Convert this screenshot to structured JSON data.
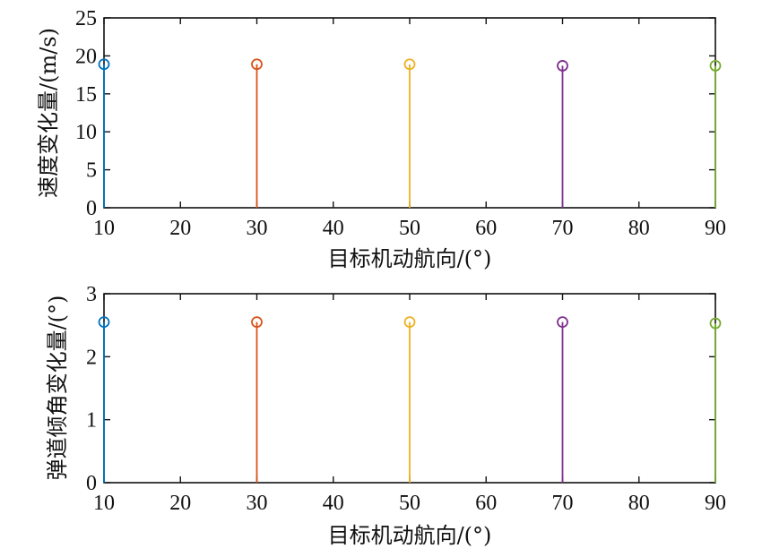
{
  "chart_data": [
    {
      "type": "stem",
      "xlabel": "目标机动航向/(°)",
      "ylabel": "速度变化量/(m/s)",
      "xlim": [
        10,
        90
      ],
      "ylim": [
        0,
        25
      ],
      "xticks": [
        10,
        20,
        30,
        40,
        50,
        60,
        70,
        80,
        90
      ],
      "yticks": [
        0,
        5,
        10,
        15,
        20,
        25
      ],
      "grid": false,
      "series": [
        {
          "x": [
            10
          ],
          "values": [
            18.9
          ],
          "color": "#0072BD"
        },
        {
          "x": [
            30
          ],
          "values": [
            18.9
          ],
          "color": "#D95319"
        },
        {
          "x": [
            50
          ],
          "values": [
            18.9
          ],
          "color": "#EDB120"
        },
        {
          "x": [
            70
          ],
          "values": [
            18.7
          ],
          "color": "#7E2F8E"
        },
        {
          "x": [
            90
          ],
          "values": [
            18.7
          ],
          "color": "#77AC30"
        }
      ]
    },
    {
      "type": "stem",
      "xlabel": "目标机动航向/(°)",
      "ylabel": "弹道倾角变化量/(°)",
      "xlim": [
        10,
        90
      ],
      "ylim": [
        0,
        3
      ],
      "xticks": [
        10,
        20,
        30,
        40,
        50,
        60,
        70,
        80,
        90
      ],
      "yticks": [
        0,
        1,
        2,
        3
      ],
      "grid": false,
      "series": [
        {
          "x": [
            10
          ],
          "values": [
            2.55
          ],
          "color": "#0072BD"
        },
        {
          "x": [
            30
          ],
          "values": [
            2.55
          ],
          "color": "#D95319"
        },
        {
          "x": [
            50
          ],
          "values": [
            2.55
          ],
          "color": "#EDB120"
        },
        {
          "x": [
            70
          ],
          "values": [
            2.55
          ],
          "color": "#7E2F8E"
        },
        {
          "x": [
            90
          ],
          "values": [
            2.53
          ],
          "color": "#77AC30"
        }
      ]
    }
  ]
}
